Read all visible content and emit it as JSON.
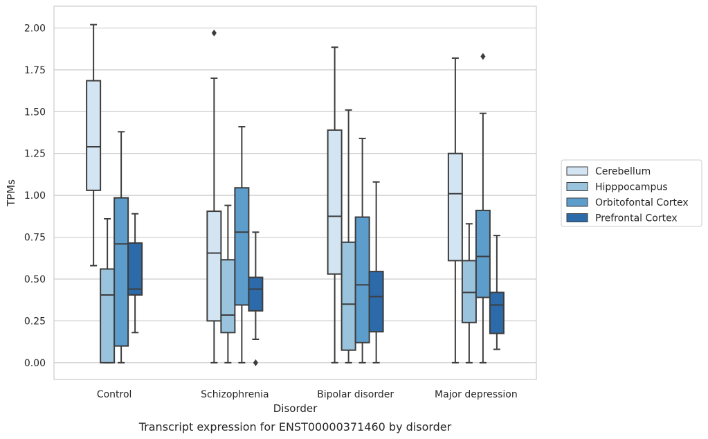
{
  "chart_data": {
    "type": "box",
    "xlabel": "Disorder",
    "ylabel": "TPMs",
    "caption": "Transcript expression for ENST00000371460 by disorder",
    "ylim": [
      -0.1,
      2.13
    ],
    "yticks": [
      "0.00",
      "0.25",
      "0.50",
      "0.75",
      "1.00",
      "1.25",
      "1.50",
      "1.75",
      "2.00"
    ],
    "ytick_values": [
      0,
      0.25,
      0.5,
      0.75,
      1.0,
      1.25,
      1.5,
      1.75,
      2.0
    ],
    "grid": "horizontal",
    "legend_position": "right",
    "categories": [
      "Control",
      "Schizophrenia",
      "Bipolar disorder",
      "Major depression"
    ],
    "series": [
      {
        "name": "Cerebellum",
        "color": "#d3e4f3",
        "boxes": [
          {
            "min": 0.58,
            "q1": 1.03,
            "median": 1.29,
            "q3": 1.685,
            "max": 2.02,
            "outliers": []
          },
          {
            "min": 0.0,
            "q1": 0.25,
            "median": 0.655,
            "q3": 0.905,
            "max": 1.7,
            "outliers": [
              1.97
            ]
          },
          {
            "min": 0.0,
            "q1": 0.53,
            "median": 0.875,
            "q3": 1.39,
            "max": 1.885,
            "outliers": []
          },
          {
            "min": 0.0,
            "q1": 0.61,
            "median": 1.01,
            "q3": 1.25,
            "max": 1.82,
            "outliers": []
          }
        ]
      },
      {
        "name": "Hipppocampus",
        "color": "#9ac3dd",
        "boxes": [
          {
            "min": 0.0,
            "q1": 0.0,
            "median": 0.405,
            "q3": 0.56,
            "max": 0.86,
            "outliers": []
          },
          {
            "min": 0.0,
            "q1": 0.18,
            "median": 0.285,
            "q3": 0.615,
            "max": 0.94,
            "outliers": []
          },
          {
            "min": 0.0,
            "q1": 0.075,
            "median": 0.35,
            "q3": 0.72,
            "max": 1.51,
            "outliers": []
          },
          {
            "min": 0.0,
            "q1": 0.24,
            "median": 0.42,
            "q3": 0.61,
            "max": 0.83,
            "outliers": []
          }
        ]
      },
      {
        "name": "Orbitofontal Cortex",
        "color": "#5c9dcc",
        "boxes": [
          {
            "min": 0.0,
            "q1": 0.1,
            "median": 0.71,
            "q3": 0.985,
            "max": 1.38,
            "outliers": []
          },
          {
            "min": 0.0,
            "q1": 0.345,
            "median": 0.78,
            "q3": 1.045,
            "max": 1.41,
            "outliers": []
          },
          {
            "min": 0.0,
            "q1": 0.12,
            "median": 0.465,
            "q3": 0.87,
            "max": 1.34,
            "outliers": []
          },
          {
            "min": 0.0,
            "q1": 0.39,
            "median": 0.635,
            "q3": 0.91,
            "max": 1.49,
            "outliers": [
              1.83
            ]
          }
        ]
      },
      {
        "name": "Prefrontal Cortex",
        "color": "#2c6aa9",
        "boxes": [
          {
            "min": 0.18,
            "q1": 0.405,
            "median": 0.44,
            "q3": 0.715,
            "max": 0.89,
            "outliers": []
          },
          {
            "min": 0.14,
            "q1": 0.31,
            "median": 0.44,
            "q3": 0.51,
            "max": 0.78,
            "outliers": [
              0.0
            ]
          },
          {
            "min": 0.0,
            "q1": 0.185,
            "median": 0.395,
            "q3": 0.545,
            "max": 1.08,
            "outliers": []
          },
          {
            "min": 0.08,
            "q1": 0.175,
            "median": 0.345,
            "q3": 0.42,
            "max": 0.76,
            "outliers": []
          }
        ]
      }
    ]
  }
}
